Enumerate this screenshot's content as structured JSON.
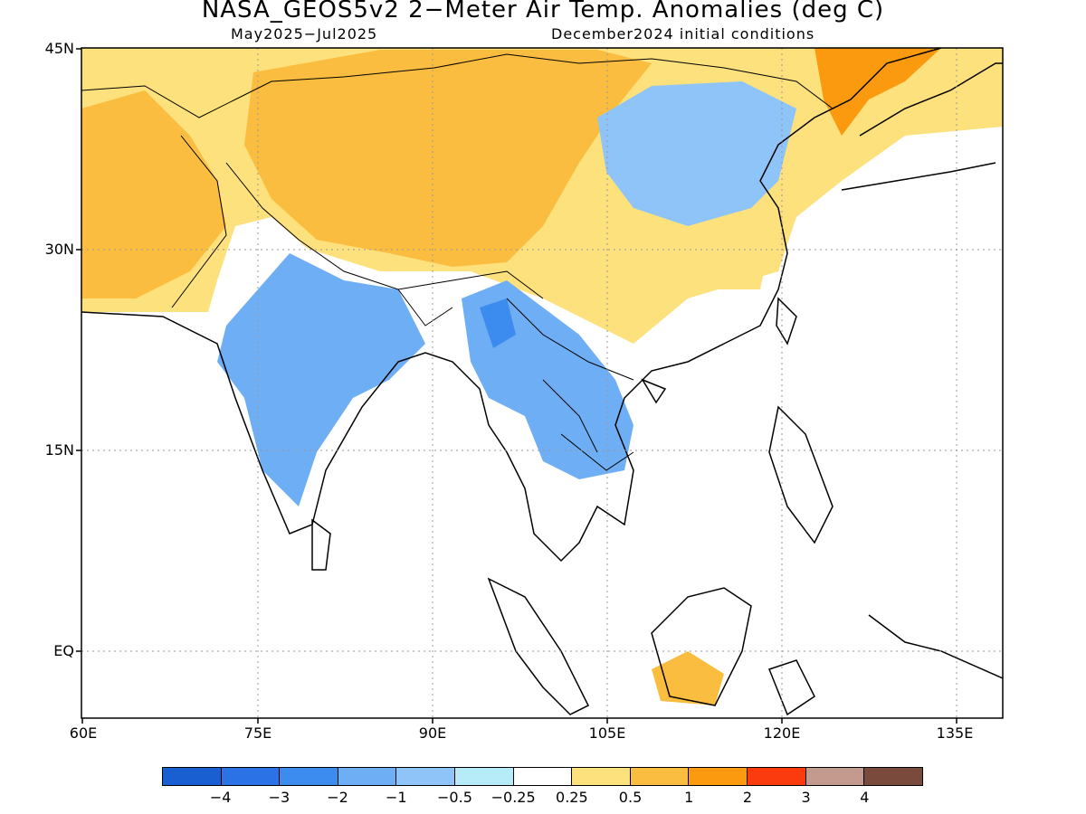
{
  "title": "NASA_GEOS5v2 2−Meter Air Temp. Anomalies (deg C)",
  "subtitle_period": "May2025−Jul2025",
  "subtitle_init": "December2024 initial conditions",
  "lat_labels": [
    "45N",
    "30N",
    "15N",
    "EQ"
  ],
  "lon_labels": [
    "60E",
    "75E",
    "90E",
    "105E",
    "120E",
    "135E"
  ],
  "colorbar": {
    "colors": [
      "#1a5fd1",
      "#2a72e6",
      "#3c8cf0",
      "#6eaef5",
      "#8ec4f7",
      "#b5ecf8",
      "#ffffff",
      "#fde17c",
      "#fbbd3f",
      "#fb9a0e",
      "#fb3b0e",
      "#c49a8e",
      "#7a4b3d"
    ],
    "labels": [
      "−4",
      "−3",
      "−2",
      "−1",
      "−0.5",
      "−0.25",
      "0.25",
      "0.5",
      "1",
      "2",
      "3",
      "4"
    ]
  },
  "map_data": {
    "lon_range": [
      60,
      140
    ],
    "lat_range": [
      -5,
      45
    ],
    "anomaly_regions": [
      {
        "name": "central-asia-warm",
        "color": "#fde17c"
      },
      {
        "name": "iran-afghanistan-warm",
        "color": "#fbbd3f"
      },
      {
        "name": "tibet-mongolia-warm",
        "color": "#fbbd3f"
      },
      {
        "name": "northeast-asia-warm",
        "color": "#fb9a0e"
      },
      {
        "name": "south-china-warm",
        "color": "#fde17c"
      },
      {
        "name": "borneo-warm",
        "color": "#fbbd3f"
      },
      {
        "name": "north-china-cool",
        "color": "#8ec4f7"
      },
      {
        "name": "india-cool",
        "color": "#6eaef5"
      },
      {
        "name": "myanmar-indochina-cool",
        "color": "#6eaef5"
      },
      {
        "name": "myanmar-core-cool",
        "color": "#3c8cf0"
      }
    ]
  }
}
